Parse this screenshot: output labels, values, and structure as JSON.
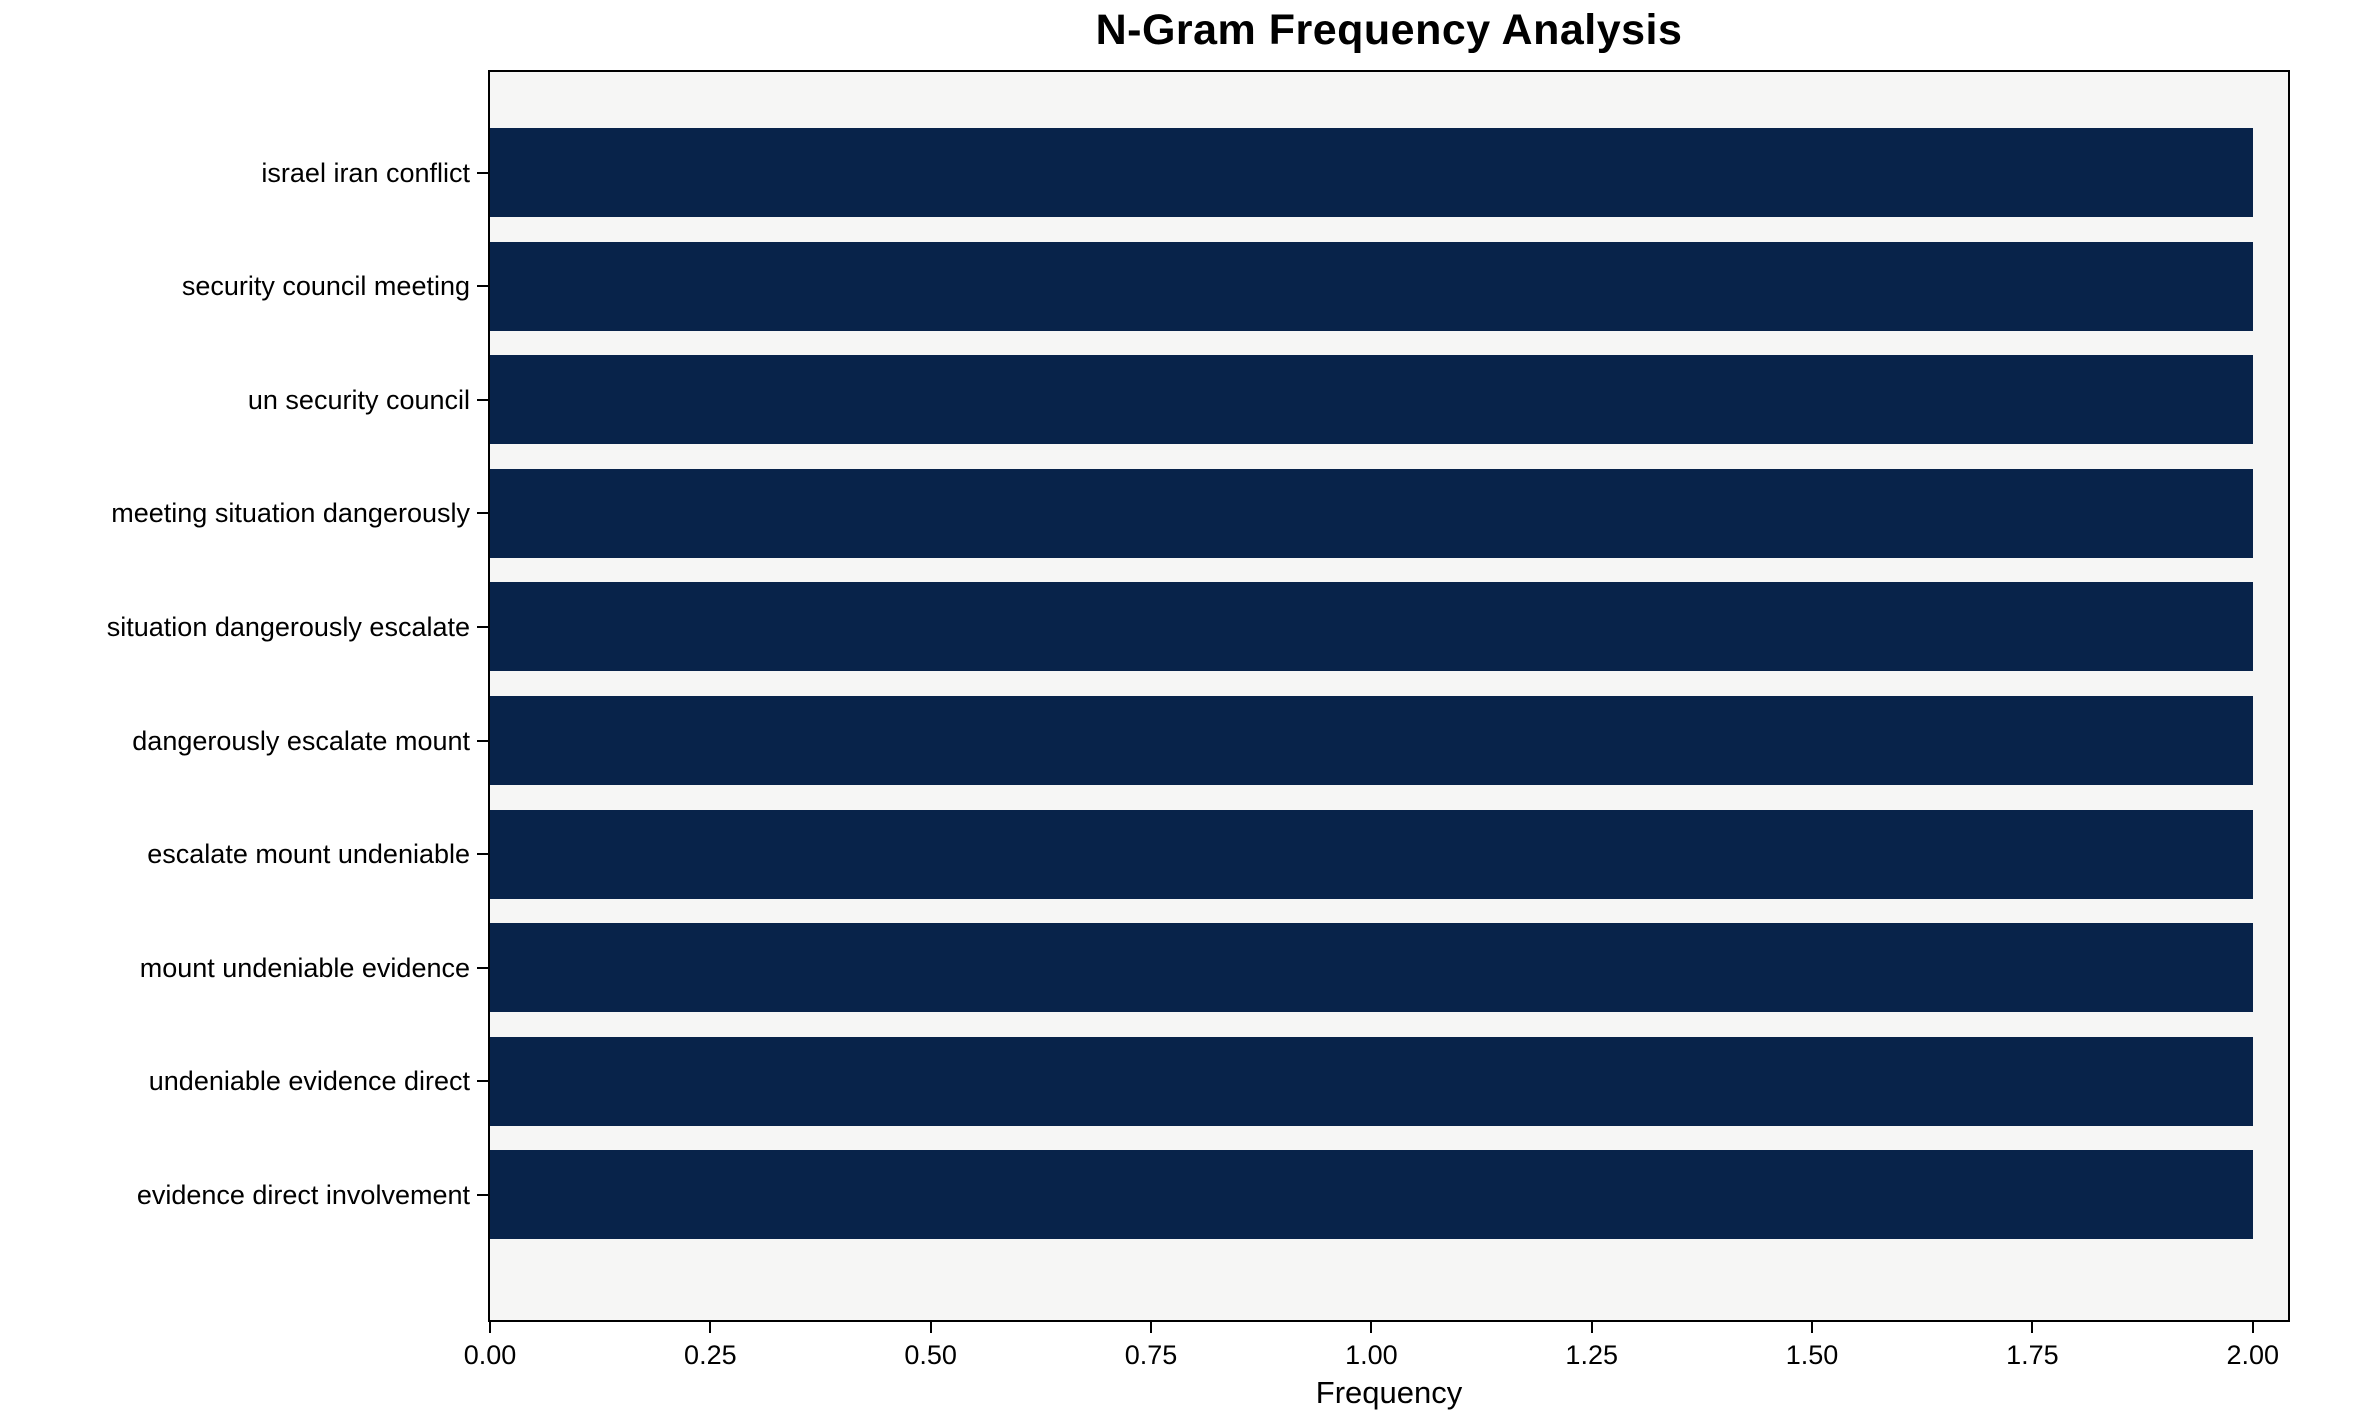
{
  "chart_data": {
    "type": "bar",
    "orientation": "horizontal",
    "title": "N-Gram Frequency Analysis",
    "xlabel": "Frequency",
    "ylabel": "",
    "categories": [
      "israel iran conflict",
      "security council meeting",
      "un security council",
      "meeting situation dangerously",
      "situation dangerously escalate",
      "dangerously escalate mount",
      "escalate mount undeniable",
      "mount undeniable evidence",
      "undeniable evidence direct",
      "evidence direct involvement"
    ],
    "values": [
      2,
      2,
      2,
      2,
      2,
      2,
      2,
      2,
      2,
      2
    ],
    "xlim": [
      0,
      2.04
    ],
    "xticks": [
      {
        "value": 0.0,
        "label": "0.00"
      },
      {
        "value": 0.25,
        "label": "0.25"
      },
      {
        "value": 0.5,
        "label": "0.50"
      },
      {
        "value": 0.75,
        "label": "0.75"
      },
      {
        "value": 1.0,
        "label": "1.00"
      },
      {
        "value": 1.25,
        "label": "1.25"
      },
      {
        "value": 1.5,
        "label": "1.50"
      },
      {
        "value": 1.75,
        "label": "1.75"
      },
      {
        "value": 2.0,
        "label": "2.00"
      }
    ],
    "grid": false,
    "legend": null,
    "colors": {
      "bar": "#08234a",
      "plot_background": "#f6f6f5",
      "figure_background": "#ffffff",
      "spine": "#000000",
      "text": "#000000"
    }
  }
}
